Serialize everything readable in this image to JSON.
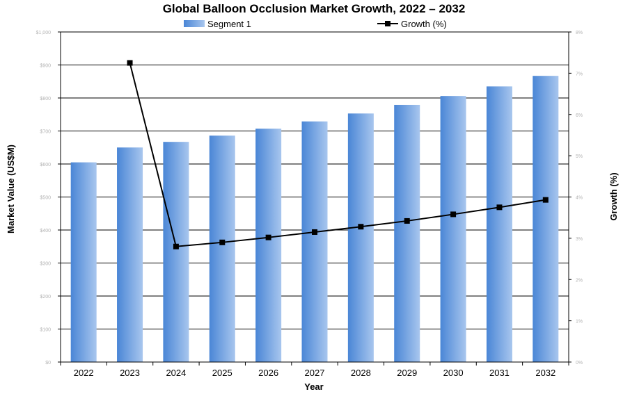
{
  "chart_data": {
    "type": "bar",
    "title": "Global Balloon Occlusion Market Growth, 2022 – 2032",
    "xlabel": "Year",
    "ylabel": "Market Value (US$M)",
    "y2label": "Growth (%)",
    "categories": [
      "2022",
      "2023",
      "2024",
      "2025",
      "2026",
      "2027",
      "2028",
      "2029",
      "2030",
      "2031",
      "2032"
    ],
    "series": [
      {
        "name": "Segment 1",
        "type": "bar",
        "axis": "left",
        "values": [
          605,
          650,
          667,
          686,
          707,
          729,
          753,
          779,
          806,
          835,
          867
        ]
      },
      {
        "name": "Growth (%)",
        "type": "line",
        "axis": "right",
        "values": [
          null,
          7.25,
          2.8,
          2.9,
          3.02,
          3.15,
          3.28,
          3.42,
          3.58,
          3.75,
          3.93
        ]
      }
    ],
    "ylim": [
      0,
      1000
    ],
    "y2lim": [
      0,
      8
    ],
    "yticks": [
      "$0",
      "$100",
      "$200",
      "$300",
      "$400",
      "$500",
      "$600",
      "$700",
      "$800",
      "$900",
      "$1,000"
    ],
    "y2ticks": [
      "0%",
      "1%",
      "2%",
      "3%",
      "4%",
      "5%",
      "6%",
      "7%",
      "8%"
    ],
    "legend_position": "top",
    "grid": true,
    "colors": {
      "bar_dark": "#4a86d6",
      "bar_light": "#a8c6ee",
      "line": "#000000"
    }
  }
}
